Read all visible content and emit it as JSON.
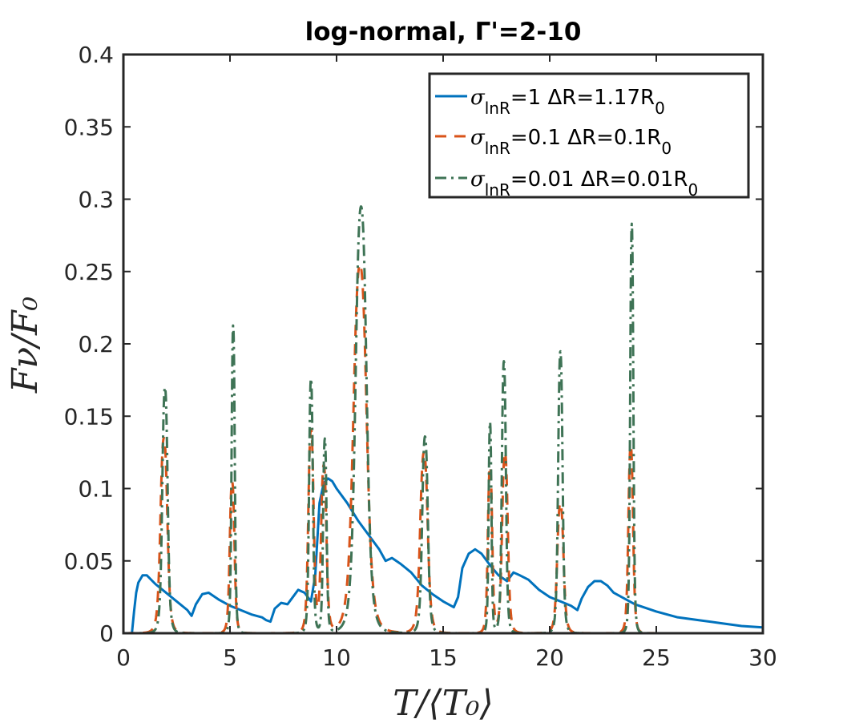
{
  "chart_data": {
    "type": "line",
    "title": "log-normal, Γ'=2-10",
    "xlabel": "T/⟨T₀⟩",
    "ylabel": "Fν/F₀",
    "xlim": [
      0,
      30
    ],
    "ylim": [
      0,
      0.4
    ],
    "xticks": [
      0,
      5,
      10,
      15,
      20,
      25,
      30
    ],
    "yticks": [
      0,
      0.05,
      0.1,
      0.15,
      0.2,
      0.25,
      0.3,
      0.35,
      0.4
    ],
    "xtick_labels": [
      "0",
      "5",
      "10",
      "15",
      "20",
      "25",
      "30"
    ],
    "ytick_labels": [
      "0",
      "0.05",
      "0.1",
      "0.15",
      "0.2",
      "0.25",
      "0.3",
      "0.35",
      "0.4"
    ],
    "legend_position": "top-right",
    "series": [
      {
        "name": "σ_lnR=1 ΔR=1.17R_0",
        "legend_parts": {
          "sigma": "σ",
          "sub": "lnR",
          "value": "=1 ΔR=1.17R",
          "r_sub": "0"
        },
        "color": "#0072BD",
        "style": "solid",
        "x": [
          0.0,
          0.4,
          0.5,
          0.6,
          0.7,
          0.9,
          1.1,
          1.5,
          2.0,
          2.5,
          3.0,
          3.2,
          3.4,
          3.7,
          4.0,
          4.5,
          5.0,
          5.5,
          6.0,
          6.5,
          6.7,
          6.9,
          7.1,
          7.4,
          7.7,
          7.9,
          8.2,
          8.5,
          8.8,
          9.0,
          9.2,
          9.4,
          9.6,
          9.8,
          10.0,
          10.5,
          11.0,
          11.5,
          12.0,
          12.3,
          12.6,
          13.0,
          13.5,
          14.0,
          14.5,
          15.0,
          15.5,
          15.7,
          15.9,
          16.2,
          16.5,
          16.8,
          17.2,
          17.6,
          18.0,
          18.3,
          18.6,
          19.0,
          19.5,
          20.0,
          20.5,
          21.0,
          21.3,
          21.5,
          21.8,
          22.1,
          22.4,
          22.7,
          23.0,
          23.5,
          24.0,
          25.0,
          26.0,
          27.0,
          28.0,
          29.0,
          30.0
        ],
        "y": [
          0.0,
          0.0,
          0.015,
          0.028,
          0.035,
          0.04,
          0.04,
          0.034,
          0.028,
          0.022,
          0.016,
          0.012,
          0.02,
          0.027,
          0.028,
          0.023,
          0.019,
          0.016,
          0.013,
          0.011,
          0.009,
          0.008,
          0.017,
          0.021,
          0.02,
          0.024,
          0.03,
          0.028,
          0.022,
          0.04,
          0.09,
          0.104,
          0.107,
          0.105,
          0.1,
          0.09,
          0.078,
          0.068,
          0.058,
          0.05,
          0.052,
          0.048,
          0.042,
          0.033,
          0.027,
          0.022,
          0.018,
          0.025,
          0.045,
          0.055,
          0.058,
          0.055,
          0.047,
          0.04,
          0.036,
          0.042,
          0.04,
          0.037,
          0.03,
          0.025,
          0.022,
          0.019,
          0.016,
          0.024,
          0.032,
          0.036,
          0.036,
          0.033,
          0.028,
          0.024,
          0.02,
          0.015,
          0.011,
          0.009,
          0.007,
          0.005,
          0.004
        ]
      },
      {
        "name": "σ_lnR=0.1 ΔR=0.1R_0",
        "legend_parts": {
          "sigma": "σ",
          "sub": "lnR",
          "value": "=0.1 ΔR=0.1R",
          "r_sub": "0"
        },
        "color": "#D95319",
        "style": "dashed",
        "peaks": [
          {
            "center": 1.9,
            "height": 0.135,
            "width": 0.22
          },
          {
            "center": 5.1,
            "height": 0.105,
            "width": 0.15
          },
          {
            "center": 8.8,
            "height": 0.14,
            "width": 0.17
          },
          {
            "center": 9.4,
            "height": 0.115,
            "width": 0.17
          },
          {
            "center": 11.1,
            "height": 0.255,
            "width": 0.42
          },
          {
            "center": 14.1,
            "height": 0.125,
            "width": 0.24
          },
          {
            "center": 17.2,
            "height": 0.115,
            "width": 0.14
          },
          {
            "center": 17.9,
            "height": 0.125,
            "width": 0.18
          },
          {
            "center": 20.5,
            "height": 0.09,
            "width": 0.2
          },
          {
            "center": 23.8,
            "height": 0.13,
            "width": 0.15
          }
        ]
      },
      {
        "name": "σ_lnR=0.01 ΔR=0.01R_0",
        "legend_parts": {
          "sigma": "σ",
          "sub": "lnR",
          "value": "=0.01 ΔR=0.01R",
          "r_sub": "0"
        },
        "color": "#3E7355",
        "style": "dashdot",
        "peaks": [
          {
            "center": 1.95,
            "height": 0.17,
            "width": 0.17
          },
          {
            "center": 5.15,
            "height": 0.213,
            "width": 0.1
          },
          {
            "center": 8.8,
            "height": 0.176,
            "width": 0.12
          },
          {
            "center": 9.45,
            "height": 0.134,
            "width": 0.11
          },
          {
            "center": 11.15,
            "height": 0.295,
            "width": 0.35
          },
          {
            "center": 14.15,
            "height": 0.136,
            "width": 0.18
          },
          {
            "center": 17.2,
            "height": 0.146,
            "width": 0.09
          },
          {
            "center": 17.85,
            "height": 0.188,
            "width": 0.13
          },
          {
            "center": 20.5,
            "height": 0.195,
            "width": 0.14
          },
          {
            "center": 23.85,
            "height": 0.283,
            "width": 0.1
          }
        ]
      }
    ]
  }
}
